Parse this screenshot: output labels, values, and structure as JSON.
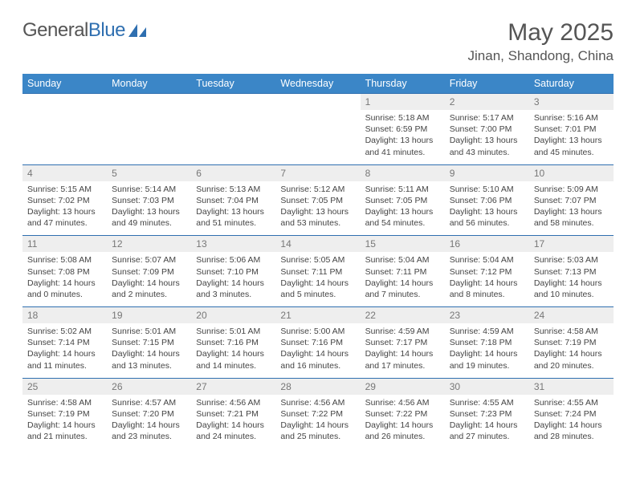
{
  "logo": {
    "word1": "General",
    "word2": "Blue"
  },
  "title": "May 2025",
  "location": "Jinan, Shandong, China",
  "dayHeaders": [
    "Sunday",
    "Monday",
    "Tuesday",
    "Wednesday",
    "Thursday",
    "Friday",
    "Saturday"
  ],
  "colors": {
    "headerBg": "#3b86c7",
    "dayNumBg": "#eeeeee",
    "accent": "#2f6fb0"
  },
  "weeks": [
    [
      null,
      null,
      null,
      null,
      {
        "n": "1",
        "sr": "5:18 AM",
        "ss": "6:59 PM",
        "dl": "13 hours and 41 minutes."
      },
      {
        "n": "2",
        "sr": "5:17 AM",
        "ss": "7:00 PM",
        "dl": "13 hours and 43 minutes."
      },
      {
        "n": "3",
        "sr": "5:16 AM",
        "ss": "7:01 PM",
        "dl": "13 hours and 45 minutes."
      }
    ],
    [
      {
        "n": "4",
        "sr": "5:15 AM",
        "ss": "7:02 PM",
        "dl": "13 hours and 47 minutes."
      },
      {
        "n": "5",
        "sr": "5:14 AM",
        "ss": "7:03 PM",
        "dl": "13 hours and 49 minutes."
      },
      {
        "n": "6",
        "sr": "5:13 AM",
        "ss": "7:04 PM",
        "dl": "13 hours and 51 minutes."
      },
      {
        "n": "7",
        "sr": "5:12 AM",
        "ss": "7:05 PM",
        "dl": "13 hours and 53 minutes."
      },
      {
        "n": "8",
        "sr": "5:11 AM",
        "ss": "7:05 PM",
        "dl": "13 hours and 54 minutes."
      },
      {
        "n": "9",
        "sr": "5:10 AM",
        "ss": "7:06 PM",
        "dl": "13 hours and 56 minutes."
      },
      {
        "n": "10",
        "sr": "5:09 AM",
        "ss": "7:07 PM",
        "dl": "13 hours and 58 minutes."
      }
    ],
    [
      {
        "n": "11",
        "sr": "5:08 AM",
        "ss": "7:08 PM",
        "dl": "14 hours and 0 minutes."
      },
      {
        "n": "12",
        "sr": "5:07 AM",
        "ss": "7:09 PM",
        "dl": "14 hours and 2 minutes."
      },
      {
        "n": "13",
        "sr": "5:06 AM",
        "ss": "7:10 PM",
        "dl": "14 hours and 3 minutes."
      },
      {
        "n": "14",
        "sr": "5:05 AM",
        "ss": "7:11 PM",
        "dl": "14 hours and 5 minutes."
      },
      {
        "n": "15",
        "sr": "5:04 AM",
        "ss": "7:11 PM",
        "dl": "14 hours and 7 minutes."
      },
      {
        "n": "16",
        "sr": "5:04 AM",
        "ss": "7:12 PM",
        "dl": "14 hours and 8 minutes."
      },
      {
        "n": "17",
        "sr": "5:03 AM",
        "ss": "7:13 PM",
        "dl": "14 hours and 10 minutes."
      }
    ],
    [
      {
        "n": "18",
        "sr": "5:02 AM",
        "ss": "7:14 PM",
        "dl": "14 hours and 11 minutes."
      },
      {
        "n": "19",
        "sr": "5:01 AM",
        "ss": "7:15 PM",
        "dl": "14 hours and 13 minutes."
      },
      {
        "n": "20",
        "sr": "5:01 AM",
        "ss": "7:16 PM",
        "dl": "14 hours and 14 minutes."
      },
      {
        "n": "21",
        "sr": "5:00 AM",
        "ss": "7:16 PM",
        "dl": "14 hours and 16 minutes."
      },
      {
        "n": "22",
        "sr": "4:59 AM",
        "ss": "7:17 PM",
        "dl": "14 hours and 17 minutes."
      },
      {
        "n": "23",
        "sr": "4:59 AM",
        "ss": "7:18 PM",
        "dl": "14 hours and 19 minutes."
      },
      {
        "n": "24",
        "sr": "4:58 AM",
        "ss": "7:19 PM",
        "dl": "14 hours and 20 minutes."
      }
    ],
    [
      {
        "n": "25",
        "sr": "4:58 AM",
        "ss": "7:19 PM",
        "dl": "14 hours and 21 minutes."
      },
      {
        "n": "26",
        "sr": "4:57 AM",
        "ss": "7:20 PM",
        "dl": "14 hours and 23 minutes."
      },
      {
        "n": "27",
        "sr": "4:56 AM",
        "ss": "7:21 PM",
        "dl": "14 hours and 24 minutes."
      },
      {
        "n": "28",
        "sr": "4:56 AM",
        "ss": "7:22 PM",
        "dl": "14 hours and 25 minutes."
      },
      {
        "n": "29",
        "sr": "4:56 AM",
        "ss": "7:22 PM",
        "dl": "14 hours and 26 minutes."
      },
      {
        "n": "30",
        "sr": "4:55 AM",
        "ss": "7:23 PM",
        "dl": "14 hours and 27 minutes."
      },
      {
        "n": "31",
        "sr": "4:55 AM",
        "ss": "7:24 PM",
        "dl": "14 hours and 28 minutes."
      }
    ]
  ],
  "labels": {
    "sunrise": "Sunrise: ",
    "sunset": "Sunset: ",
    "daylight": "Daylight: "
  }
}
